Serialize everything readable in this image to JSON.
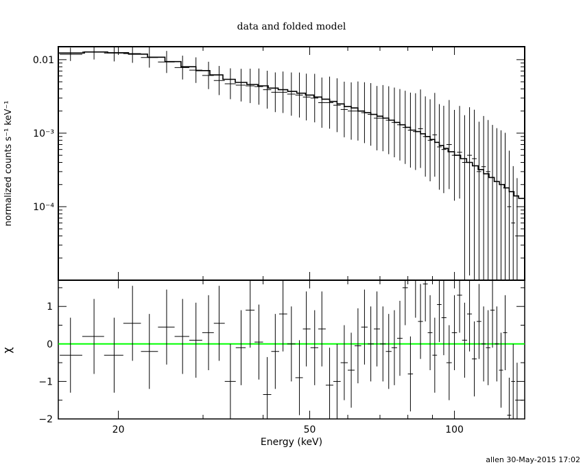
{
  "chart_data": [
    {
      "type": "line",
      "title": "data and folded model",
      "xlabel": "Energy (keV)",
      "ylabel": "normalized counts s⁻¹ keV⁻¹",
      "xscale": "log",
      "yscale": "log",
      "xlim": [
        15,
        140
      ],
      "ylim": [
        1e-05,
        0.015
      ],
      "x_ticks": [
        {
          "v": 20,
          "label": "20"
        },
        {
          "v": 50,
          "label": "50"
        },
        {
          "v": 100,
          "label": "100"
        }
      ],
      "y_ticks": [
        {
          "v": 0.01,
          "label": "0.01"
        },
        {
          "v": 0.001,
          "label": "10⁻³"
        },
        {
          "v": 0.0001,
          "label": "10⁻⁴"
        }
      ],
      "series": [
        {
          "style": "crosses",
          "x": [
            15.9,
            17.8,
            19.6,
            21.4,
            23.2,
            25.2,
            27.2,
            29.0,
            30.8,
            32.4,
            34.2,
            36.0,
            37.6,
            39.2,
            40.8,
            42.4,
            44.0,
            45.8,
            47.6,
            49.2,
            51.2,
            53.0,
            55.0,
            57.0,
            59.0,
            61.0,
            63.0,
            65.0,
            67.0,
            69.0,
            71.0,
            73.0,
            75.0,
            77.0,
            79.0,
            81.0,
            83.0,
            85.0,
            87.0,
            89.0,
            91.0,
            93.0,
            95.0,
            97.5,
            100.0,
            102.5,
            105.0,
            107.5,
            110.0,
            112.5,
            115.0,
            117.5,
            120.0,
            122.5,
            125.0,
            127.5,
            130.0,
            132.5,
            135.0
          ],
          "values": [
            0.0118,
            0.0127,
            0.0123,
            0.0121,
            0.0107,
            0.0093,
            0.0078,
            0.0072,
            0.0061,
            0.0052,
            0.0047,
            0.0045,
            0.0044,
            0.0043,
            0.0039,
            0.0036,
            0.0036,
            0.0034,
            0.0033,
            0.0031,
            0.003,
            0.0026,
            0.0026,
            0.0024,
            0.0021,
            0.002,
            0.002,
            0.0019,
            0.0018,
            0.0016,
            0.0016,
            0.0015,
            0.0014,
            0.0013,
            0.0012,
            0.0011,
            0.00105,
            0.00115,
            0.0009,
            0.0008,
            0.00095,
            0.00065,
            0.0006,
            0.0007,
            0.0005,
            0.00055,
            0.0004,
            0.0005,
            0.00045,
            0.0003,
            0.00035,
            0.0003,
            0.00025,
            0.00022,
            0.0002,
            0.00018,
            0.0001,
            6e-05,
            4e-05
          ]
        },
        {
          "style": "step",
          "x": [
            15.0,
            17.0,
            19.0,
            21.0,
            23.0,
            25.0,
            27.0,
            29.0,
            31.0,
            33.0,
            35.0,
            37.0,
            39.0,
            41.0,
            43.0,
            45.0,
            47.0,
            49.0,
            51.0,
            53.0,
            55.0,
            57.0,
            59.0,
            61.0,
            63.0,
            65.0,
            67.0,
            69.0,
            71.0,
            73.0,
            75.0,
            77.0,
            79.0,
            81.0,
            83.0,
            85.0,
            87.0,
            89.0,
            91.0,
            93.0,
            95.0,
            97.0,
            100.0,
            103.0,
            106.0,
            109.0,
            112.0,
            115.0,
            118.0,
            121.0,
            124.0,
            127.0,
            130.0,
            133.0,
            136.0,
            140.0
          ],
          "values": [
            0.0123,
            0.0127,
            0.0124,
            0.0119,
            0.0108,
            0.0094,
            0.008,
            0.0071,
            0.0062,
            0.0054,
            0.0049,
            0.0046,
            0.0044,
            0.0041,
            0.0039,
            0.0037,
            0.0035,
            0.0033,
            0.0031,
            0.0029,
            0.0027,
            0.0025,
            0.0023,
            0.0022,
            0.002,
            0.0019,
            0.0018,
            0.0017,
            0.0016,
            0.0015,
            0.0014,
            0.0013,
            0.0012,
            0.0011,
            0.00105,
            0.00098,
            0.0009,
            0.00082,
            0.00075,
            0.00068,
            0.00062,
            0.00056,
            0.0005,
            0.00045,
            0.0004,
            0.00036,
            0.00032,
            0.00028,
            0.00025,
            0.00022,
            0.0002,
            0.00018,
            0.00016,
            0.00014,
            0.00013,
            0.00013
          ]
        }
      ]
    },
    {
      "type": "scatter",
      "xlabel": "Energy (keV)",
      "ylabel": "χ",
      "xscale": "log",
      "xlim": [
        15,
        140
      ],
      "ylim": [
        -2,
        1.7
      ],
      "x_ticks": [
        {
          "v": 20,
          "label": "20"
        },
        {
          "v": 50,
          "label": "50"
        },
        {
          "v": 100,
          "label": "100"
        }
      ],
      "y_ticks": [
        {
          "v": 1,
          "label": "1"
        },
        {
          "v": 0,
          "label": "0"
        },
        {
          "v": -1,
          "label": "−1"
        },
        {
          "v": -2,
          "label": "−2"
        }
      ],
      "reference_line": {
        "y": 0,
        "color": "#00ff00"
      },
      "x": [
        15.9,
        17.8,
        19.6,
        21.4,
        23.2,
        25.2,
        27.2,
        29.0,
        30.8,
        32.4,
        34.2,
        36.0,
        37.6,
        39.2,
        40.8,
        42.4,
        44.0,
        45.8,
        47.6,
        49.2,
        51.2,
        53.0,
        55.0,
        57.0,
        59.0,
        61.0,
        63.0,
        65.0,
        67.0,
        69.0,
        71.0,
        73.0,
        75.0,
        77.0,
        79.0,
        81.0,
        83.0,
        85.0,
        87.0,
        89.0,
        91.0,
        93.0,
        95.0,
        97.5,
        100.0,
        102.5,
        105.0,
        107.5,
        110.0,
        112.5,
        115.0,
        117.5,
        120.0,
        122.5,
        125.0,
        127.5,
        130.0,
        132.5,
        135.0
      ],
      "values": [
        -0.3,
        0.2,
        -0.3,
        0.55,
        -0.2,
        0.45,
        0.2,
        0.1,
        0.3,
        0.55,
        -1.0,
        -0.1,
        0.9,
        0.05,
        -1.35,
        -0.2,
        0.8,
        0.0,
        -0.9,
        0.4,
        -0.1,
        0.4,
        -1.1,
        -1.0,
        -0.5,
        -0.7,
        -0.05,
        0.45,
        0.0,
        0.4,
        0.0,
        -0.2,
        -0.1,
        0.15,
        1.5,
        -0.8,
        1.7,
        0.6,
        1.6,
        0.3,
        -0.3,
        1.05,
        0.7,
        -0.5,
        0.3,
        1.3,
        0.1,
        0.8,
        -0.4,
        0.6,
        0.0,
        -0.1,
        0.9,
        0.0,
        -0.7,
        0.3,
        -1.9,
        -1.0,
        -1.5
      ]
    }
  ],
  "footer": {
    "timestamp": "allen 30-May-2015 17:02"
  }
}
